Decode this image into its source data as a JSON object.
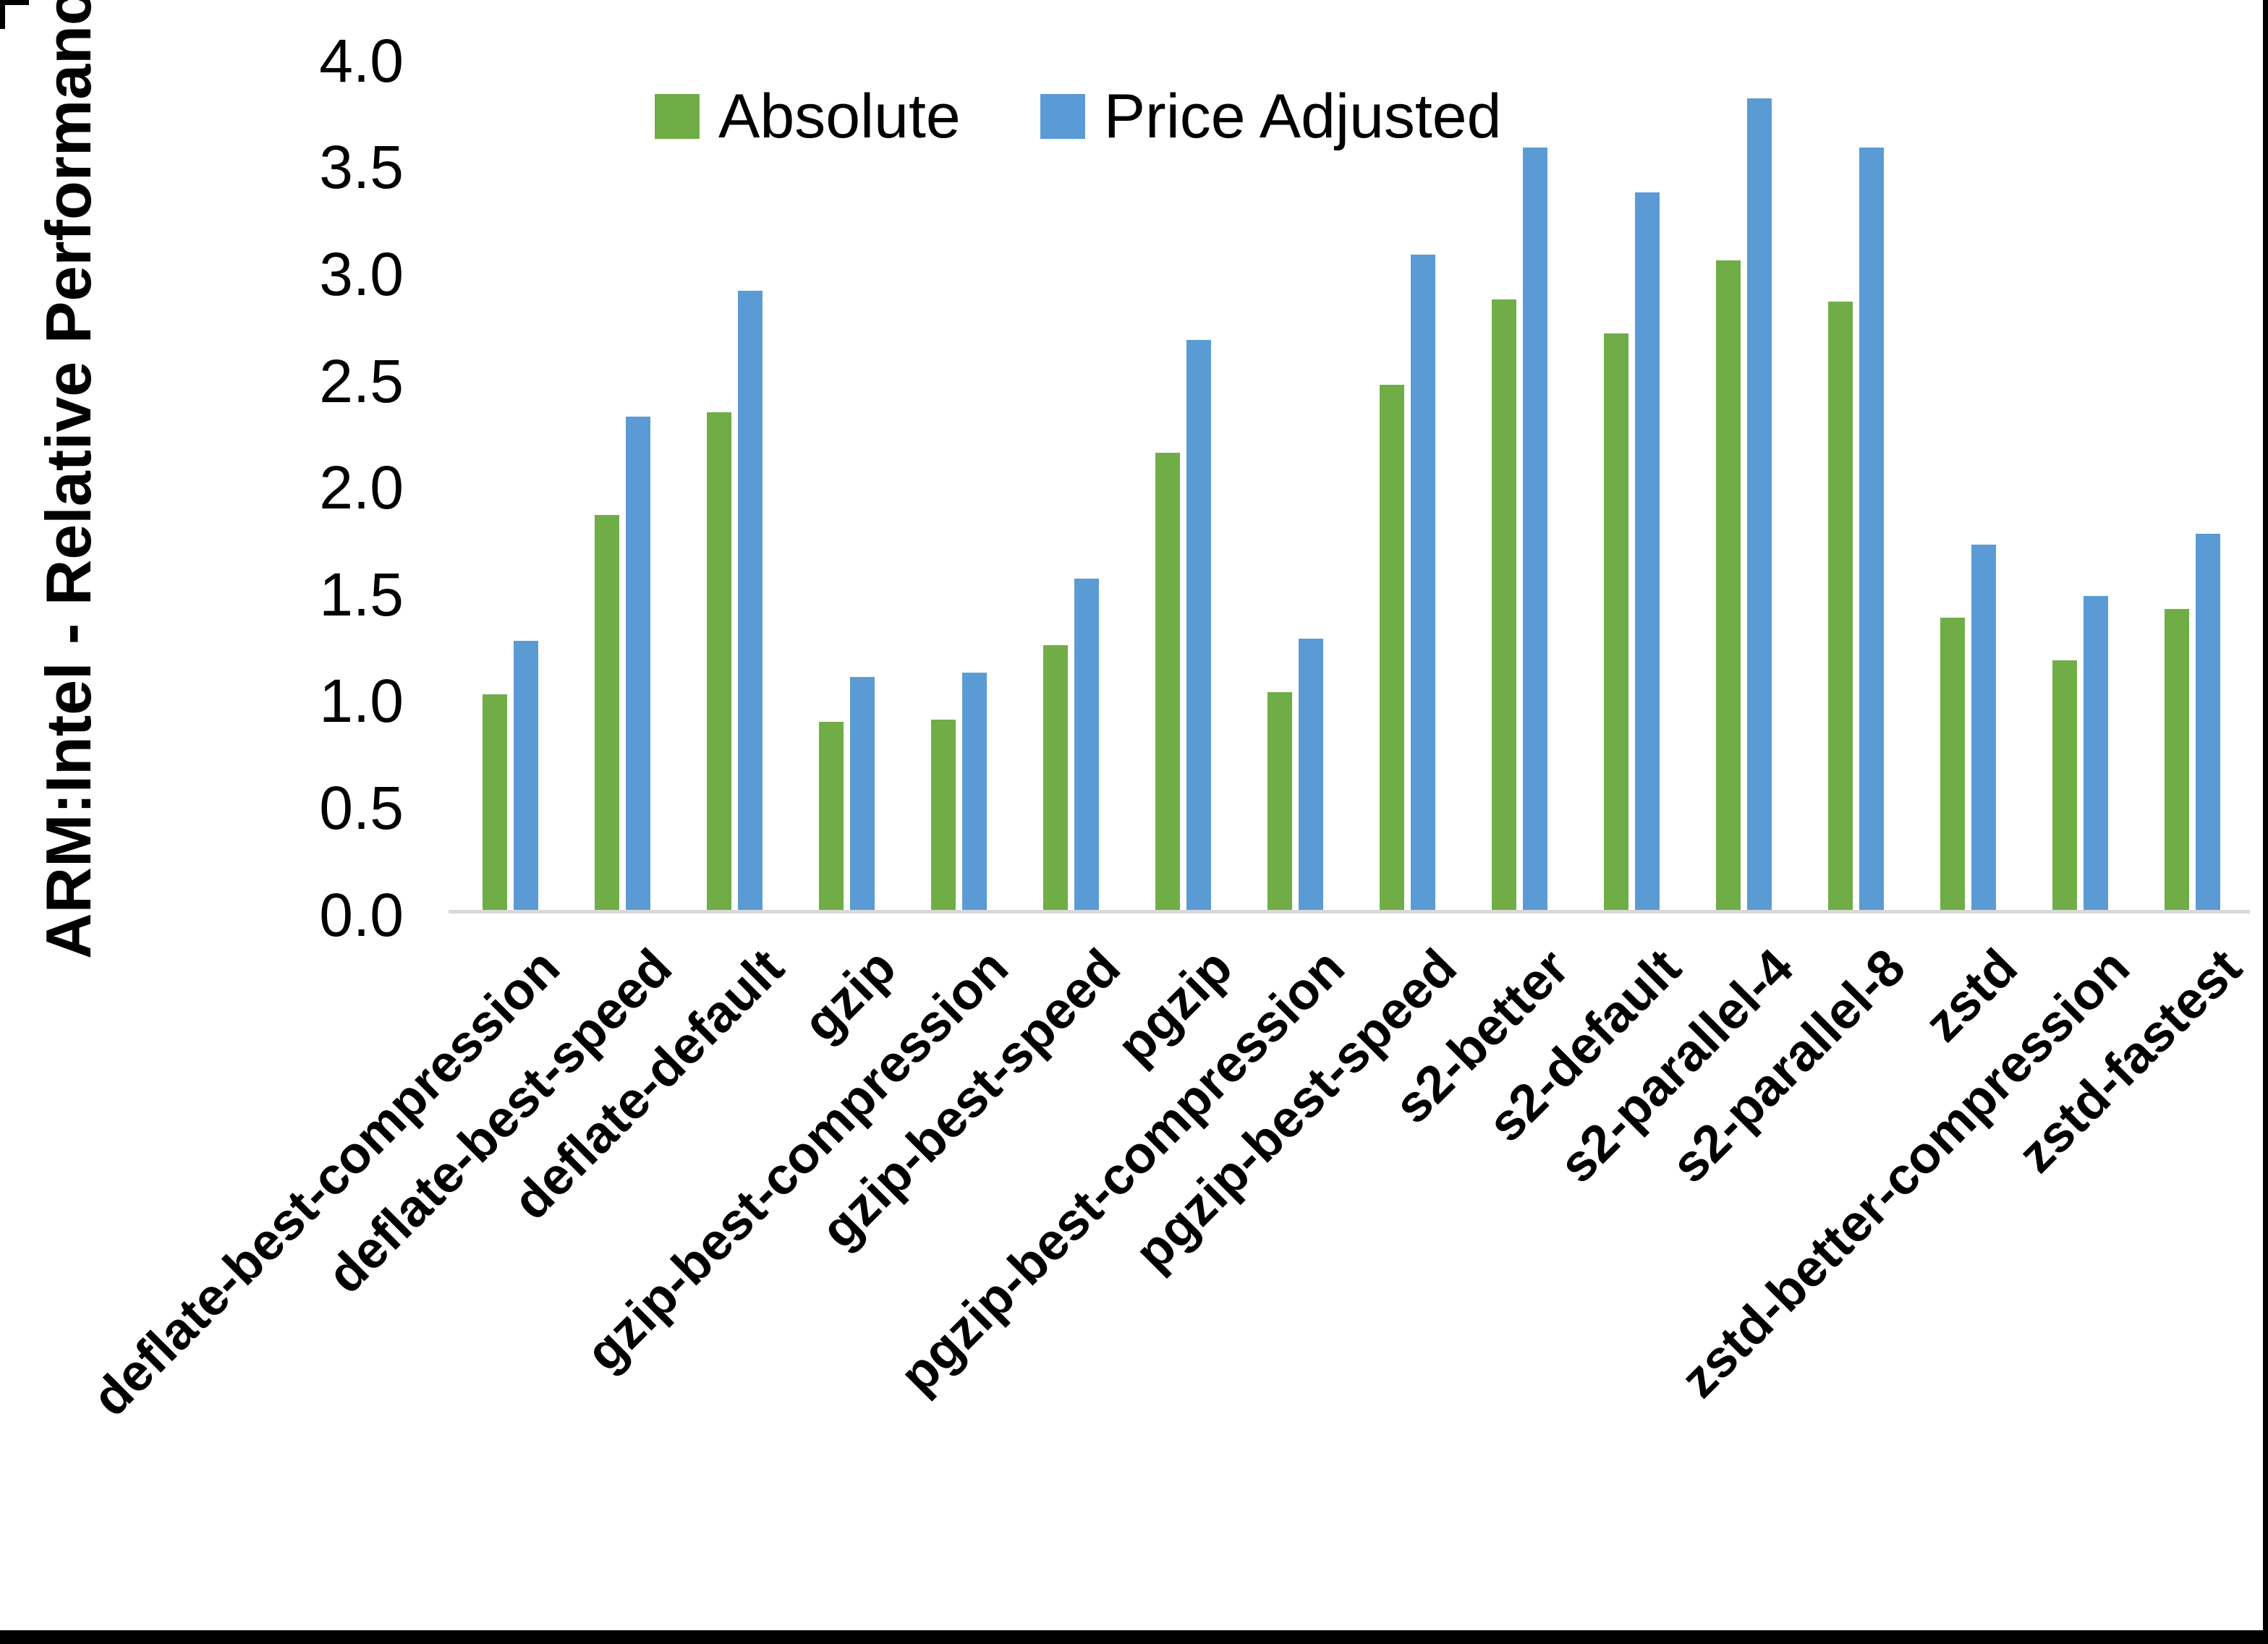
{
  "chart_data": {
    "type": "bar",
    "title": "",
    "xlabel": "",
    "ylabel": "ARM:Intel - Relative Performance",
    "ylim": [
      0.0,
      4.0
    ],
    "ytick_step": 0.5,
    "ytick_labels": [
      "0.0",
      "0.5",
      "1.0",
      "1.5",
      "2.0",
      "2.5",
      "3.0",
      "3.5",
      "4.0"
    ],
    "grid": "off",
    "legend_position": "top-center",
    "categories": [
      "deflate-best-compression",
      "deflate-best-speed",
      "deflate-default",
      "gzip",
      "gzip-best-compression",
      "gzip-best-speed",
      "pgzip",
      "pgzip-best-compression",
      "pgzip-best-speed",
      "s2-better",
      "s2-default",
      "s2-parallel-4",
      "s2-parallel-8",
      "zstd",
      "zstd-better-compression",
      "zstd-fastest"
    ],
    "series": [
      {
        "name": "Absolute",
        "color": "#70AD47",
        "values": [
          1.01,
          1.85,
          2.33,
          0.88,
          0.89,
          1.24,
          2.14,
          1.02,
          2.46,
          2.86,
          2.7,
          3.04,
          2.85,
          1.37,
          1.17,
          1.41
        ]
      },
      {
        "name": "Price Adjusted",
        "color": "#5B9BD5",
        "values": [
          1.26,
          2.31,
          2.9,
          1.09,
          1.11,
          1.55,
          2.67,
          1.27,
          3.07,
          3.57,
          3.36,
          3.8,
          3.57,
          1.71,
          1.47,
          1.76
        ]
      }
    ],
    "colors": {
      "axis_line": "#D9D9D9",
      "text": "#000000",
      "border": "#000000",
      "background": "#FFFFFF"
    }
  }
}
